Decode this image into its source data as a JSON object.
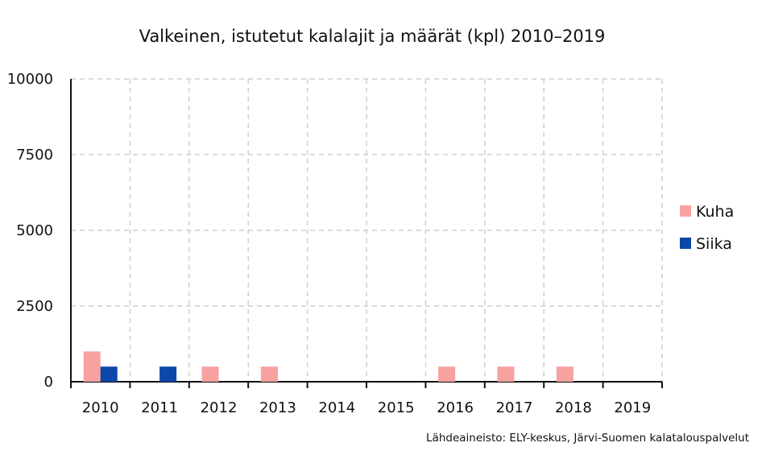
{
  "chart_data": {
    "type": "bar",
    "title": "Valkeinen, istutetut kalalajit ja määrät (kpl) 2010–2019",
    "xlabel": "",
    "ylabel": "",
    "categories": [
      "2010",
      "2011",
      "2012",
      "2013",
      "2014",
      "2015",
      "2016",
      "2017",
      "2018",
      "2019"
    ],
    "series": [
      {
        "name": "Kuha",
        "color": "#f7a1a1",
        "values": [
          1000,
          0,
          500,
          500,
          0,
          0,
          500,
          500,
          500,
          0
        ]
      },
      {
        "name": "Siika",
        "color": "#0d47a8",
        "values": [
          500,
          500,
          0,
          0,
          0,
          0,
          0,
          0,
          0,
          0
        ]
      }
    ],
    "ylim": [
      0,
      10000
    ],
    "yticks": [
      "0",
      "2500",
      "5000",
      "7500",
      "10000"
    ],
    "grid": true,
    "legend_position": "right",
    "source": "Lähdeaineisto: ELY-keskus, Järvi-Suomen kalatalouspalvelut"
  }
}
